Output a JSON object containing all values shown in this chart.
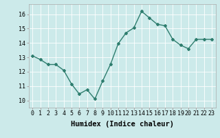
{
  "x": [
    0,
    1,
    2,
    3,
    4,
    5,
    6,
    7,
    8,
    9,
    10,
    11,
    12,
    13,
    14,
    15,
    16,
    17,
    18,
    19,
    20,
    21,
    22,
    23
  ],
  "y": [
    13.1,
    12.85,
    12.5,
    12.5,
    12.1,
    11.15,
    10.45,
    10.75,
    10.1,
    11.35,
    12.5,
    13.95,
    14.7,
    15.05,
    16.2,
    15.75,
    15.3,
    15.2,
    14.25,
    13.85,
    13.6,
    14.25,
    14.25,
    14.25
  ],
  "line_color": "#2e7d6e",
  "marker": "D",
  "marker_size": 2.0,
  "linewidth": 1.0,
  "xlabel": "Humidex (Indice chaleur)",
  "xlim": [
    -0.5,
    23.5
  ],
  "ylim": [
    9.5,
    16.7
  ],
  "yticks": [
    10,
    11,
    12,
    13,
    14,
    15,
    16
  ],
  "xticks": [
    0,
    1,
    2,
    3,
    4,
    5,
    6,
    7,
    8,
    9,
    10,
    11,
    12,
    13,
    14,
    15,
    16,
    17,
    18,
    19,
    20,
    21,
    22,
    23
  ],
  "xtick_labels": [
    "0",
    "1",
    "2",
    "3",
    "4",
    "5",
    "6",
    "7",
    "8",
    "9",
    "10",
    "11",
    "12",
    "13",
    "14",
    "15",
    "16",
    "17",
    "18",
    "19",
    "20",
    "21",
    "22",
    "23"
  ],
  "bg_color": "#cceaea",
  "grid_color": "#ffffff",
  "tick_fontsize": 6,
  "xlabel_fontsize": 7.5,
  "grid_major_lw": 0.6
}
